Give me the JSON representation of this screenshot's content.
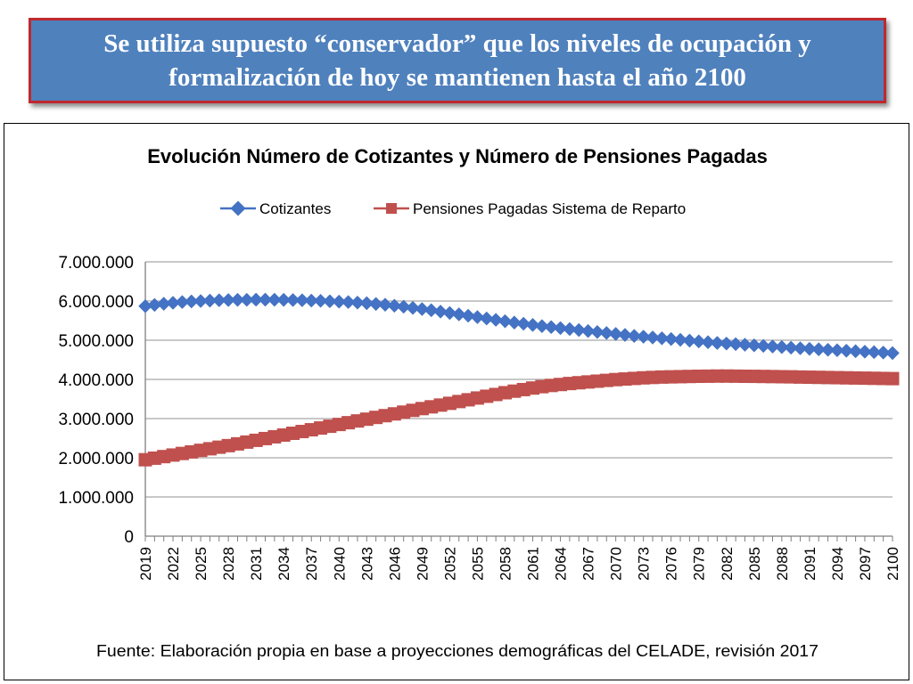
{
  "banner": {
    "line1": "Se utiliza supuesto “conservador” que los niveles de ocupación y",
    "line2": "formalización de hoy se mantienen hasta el año 2100"
  },
  "colors": {
    "banner_bg": "#4f81bd",
    "banner_border": "#c0282d",
    "series1": "#4472c4",
    "series2": "#c0504d",
    "grid": "#a6a6a6"
  },
  "chart_data": {
    "type": "line",
    "title": "Evolución Número de Cotizantes y Número de Pensiones Pagadas",
    "legend_position": "top-center",
    "grid": true,
    "x": [
      2019,
      2020,
      2021,
      2022,
      2023,
      2024,
      2025,
      2026,
      2027,
      2028,
      2029,
      2030,
      2031,
      2032,
      2033,
      2034,
      2035,
      2036,
      2037,
      2038,
      2039,
      2040,
      2041,
      2042,
      2043,
      2044,
      2045,
      2046,
      2047,
      2048,
      2049,
      2050,
      2051,
      2052,
      2053,
      2054,
      2055,
      2056,
      2057,
      2058,
      2059,
      2060,
      2061,
      2062,
      2063,
      2064,
      2065,
      2066,
      2067,
      2068,
      2069,
      2070,
      2071,
      2072,
      2073,
      2074,
      2075,
      2076,
      2077,
      2078,
      2079,
      2080,
      2081,
      2082,
      2083,
      2084,
      2085,
      2086,
      2087,
      2088,
      2089,
      2090,
      2091,
      2092,
      2093,
      2094,
      2095,
      2096,
      2097,
      2098,
      2099,
      2100
    ],
    "x_tick_labels": [
      "2019",
      "2022",
      "2025",
      "2028",
      "2031",
      "2034",
      "2037",
      "2040",
      "2043",
      "2046",
      "2049",
      "2052",
      "2055",
      "2058",
      "2061",
      "2064",
      "2067",
      "2070",
      "2073",
      "2076",
      "2079",
      "2082",
      "2085",
      "2088",
      "2091",
      "2094",
      "2097",
      "2100"
    ],
    "ylim": [
      0,
      7000000
    ],
    "y_tick_labels": [
      "0",
      "1.000.000",
      "2.000.000",
      "3.000.000",
      "4.000.000",
      "5.000.000",
      "6.000.000",
      "7.000.000"
    ],
    "series": [
      {
        "name": "Cotizantes",
        "marker": "diamond",
        "values": [
          5870000,
          5900000,
          5930000,
          5955000,
          5975000,
          5990000,
          6000000,
          6010000,
          6020000,
          6025000,
          6030000,
          6032000,
          6035000,
          6035000,
          6033000,
          6030000,
          6025000,
          6020000,
          6012000,
          6005000,
          5995000,
          5985000,
          5975000,
          5960000,
          5945000,
          5925000,
          5905000,
          5880000,
          5855000,
          5825000,
          5795000,
          5765000,
          5730000,
          5695000,
          5660000,
          5625000,
          5590000,
          5555000,
          5520000,
          5485000,
          5450000,
          5420000,
          5390000,
          5360000,
          5335000,
          5310000,
          5285000,
          5260000,
          5235000,
          5210000,
          5185000,
          5160000,
          5135000,
          5110000,
          5090000,
          5070000,
          5050000,
          5030000,
          5010000,
          4990000,
          4970000,
          4950000,
          4930000,
          4915000,
          4900000,
          4885000,
          4870000,
          4855000,
          4840000,
          4825000,
          4810000,
          4795000,
          4780000,
          4768000,
          4756000,
          4744000,
          4732000,
          4720000,
          4708000,
          4696000,
          4684000,
          4672000
        ]
      },
      {
        "name": "Pensiones Pagadas Sistema de Reparto",
        "marker": "square",
        "values": [
          1950000,
          1990000,
          2030000,
          2070000,
          2110000,
          2150000,
          2190000,
          2230000,
          2270000,
          2310000,
          2355000,
          2400000,
          2445000,
          2490000,
          2535000,
          2580000,
          2625000,
          2670000,
          2715000,
          2760000,
          2805000,
          2850000,
          2895000,
          2940000,
          2985000,
          3030000,
          3075000,
          3120000,
          3165000,
          3210000,
          3255000,
          3300000,
          3345000,
          3390000,
          3435000,
          3480000,
          3525000,
          3570000,
          3615000,
          3660000,
          3700000,
          3740000,
          3780000,
          3815000,
          3845000,
          3870000,
          3895000,
          3915000,
          3935000,
          3955000,
          3975000,
          3995000,
          4010000,
          4025000,
          4040000,
          4050000,
          4060000,
          4065000,
          4070000,
          4075000,
          4080000,
          4082000,
          4085000,
          4085000,
          4083000,
          4080000,
          4078000,
          4075000,
          4072000,
          4068000,
          4065000,
          4060000,
          4056000,
          4052000,
          4048000,
          4044000,
          4040000,
          4036000,
          4032000,
          4028000,
          4024000,
          4020000
        ]
      }
    ],
    "source_note": "Fuente: Elaboración propia en base a proyecciones demográficas del CELADE, revisión 2017"
  }
}
